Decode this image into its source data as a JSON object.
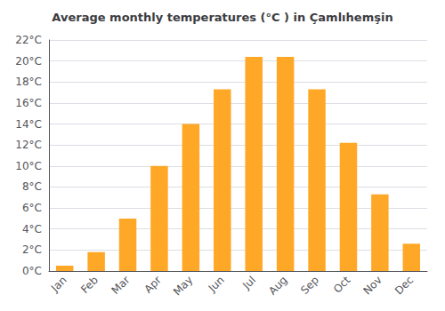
{
  "chart_data": {
    "type": "bar",
    "title": "Average monthly temperatures (°C ) in Çamlıhemşin",
    "categories": [
      "Jan",
      "Feb",
      "Mar",
      "Apr",
      "May",
      "Jun",
      "Jul",
      "Aug",
      "Sep",
      "Oct",
      "Nov",
      "Dec"
    ],
    "values": [
      0.5,
      1.8,
      5.0,
      10.0,
      14.0,
      17.3,
      20.4,
      20.4,
      17.3,
      12.2,
      7.3,
      2.6
    ],
    "color": "#FFA726",
    "ylim": [
      0,
      22
    ],
    "yticks": [
      {
        "value": 0,
        "label": "0°C"
      },
      {
        "value": 2,
        "label": "2°C"
      },
      {
        "value": 4,
        "label": "4°C"
      },
      {
        "value": 6,
        "label": "6°C"
      },
      {
        "value": 8,
        "label": "8°C"
      },
      {
        "value": 10,
        "label": "10°C"
      },
      {
        "value": 12,
        "label": "12°C"
      },
      {
        "value": 14,
        "label": "14°C"
      },
      {
        "value": 16,
        "label": "16°C"
      },
      {
        "value": 18,
        "label": "18°C"
      },
      {
        "value": 20,
        "label": "20°C"
      },
      {
        "value": 22,
        "label": "22°C"
      }
    ],
    "grid": true
  }
}
